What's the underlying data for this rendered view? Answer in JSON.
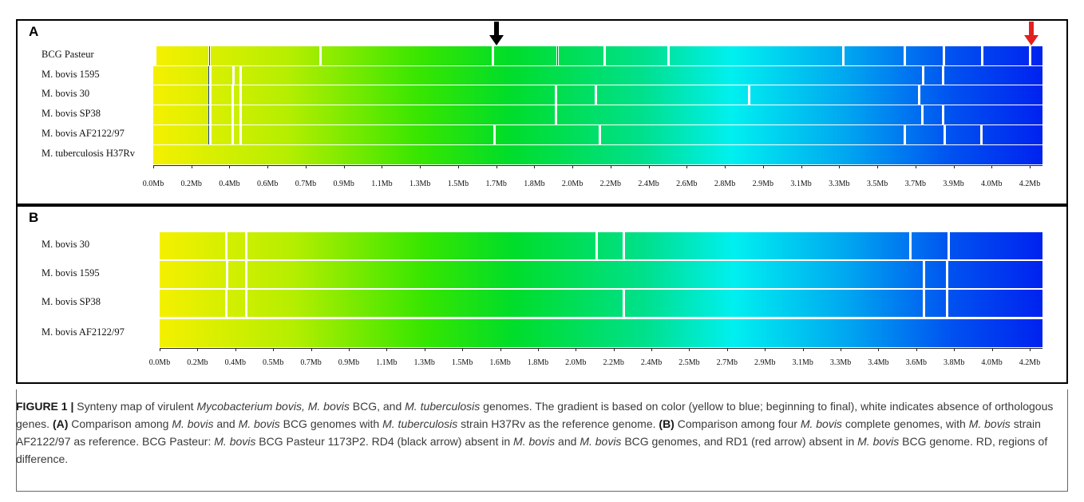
{
  "panelA": {
    "letter": "A",
    "tracks": [
      {
        "label": "BCG Pasteur",
        "top": 58,
        "height": 24,
        "start": 196,
        "gaps": [
          261,
          400,
          616,
          697,
          756,
          836,
          1055,
          1132,
          1181,
          1229,
          1289
        ],
        "darklines": [
          262,
          698
        ]
      },
      {
        "label": "M. bovis 1595",
        "top": 83,
        "height": 23,
        "start": 192,
        "gaps": [
          262,
          291,
          300,
          1155,
          1180
        ],
        "darklines": [
          261
        ]
      },
      {
        "label": "M. bovis 30",
        "top": 107,
        "height": 24,
        "start": 192,
        "gaps": [
          262,
          290,
          300,
          695,
          745,
          937,
          1150
        ],
        "darklines": [
          261
        ]
      },
      {
        "label": "M. bovis SP38",
        "top": 132,
        "height": 24,
        "start": 192,
        "gaps": [
          262,
          290,
          300,
          695,
          1154,
          1180
        ],
        "darklines": [
          261
        ]
      },
      {
        "label": "M. bovis AF2122/97",
        "top": 157,
        "height": 24,
        "start": 192,
        "gaps": [
          262,
          290,
          300,
          618,
          750,
          1132,
          1182,
          1228
        ],
        "darklines": [
          261
        ]
      },
      {
        "label": "M. tuberculosis H37Rv",
        "top": 182,
        "height": 24,
        "start": 192,
        "gaps": [],
        "darklines": []
      }
    ],
    "ticks": [
      "0.0Mb",
      "0.2Mb",
      "0.4Mb",
      "0.6Mb",
      "0.7Mb",
      "0.9Mb",
      "1.1Mb",
      "1.3Mb",
      "1.5Mb",
      "1.7Mb",
      "1.8Mb",
      "2.0Mb",
      "2.2Mb",
      "2.4Mb",
      "2.6Mb",
      "2.8Mb",
      "2.9Mb",
      "3.1Mb",
      "3.3Mb",
      "3.5Mb",
      "3.7Mb",
      "3.9Mb",
      "4.0Mb",
      "4.2Mb"
    ],
    "arrows": [
      {
        "color": "#000000"
      },
      {
        "color": "#e32020"
      }
    ]
  },
  "panelB": {
    "letter": "B",
    "tracks": [
      {
        "label": "M. bovis 30",
        "top": 291,
        "height": 34,
        "start": 200,
        "gaps": [
          282,
          307,
          746,
          780,
          1139,
          1187
        ],
        "darklines": []
      },
      {
        "label": "M. bovis 1595",
        "top": 327,
        "height": 34,
        "start": 200,
        "gaps": [
          283,
          307,
          1156,
          1185
        ],
        "darklines": []
      },
      {
        "label": "M. bovis SP38",
        "top": 363,
        "height": 34,
        "start": 200,
        "gaps": [
          282,
          307,
          780,
          1156,
          1185
        ],
        "darklines": []
      },
      {
        "label": "M. bovis AF2122/97",
        "top": 400,
        "height": 35,
        "start": 200,
        "gaps": [],
        "darklines": []
      }
    ],
    "ticks": [
      "0.0Mb",
      "0.2Mb",
      "0.4Mb",
      "0.5Mb",
      "0.7Mb",
      "0.9Mb",
      "1.1Mb",
      "1.3Mb",
      "1.5Mb",
      "1.6Mb",
      "1.8Mb",
      "2.0Mb",
      "2.2Mb",
      "2.4Mb",
      "2.5Mb",
      "2.7Mb",
      "2.9Mb",
      "3.1Mb",
      "3.3Mb",
      "3.4Mb",
      "3.6Mb",
      "3.8Mb",
      "4.0Mb",
      "4.2Mb"
    ]
  },
  "caption": {
    "figure_label": "FIGURE 1 |",
    "line1_a": " Synteny map of virulent ",
    "line1_i1": "Mycobacterium bovis, M. bovis",
    "line1_b": " BCG, and ",
    "line1_i2": "M. tuberculosis",
    "line1_c": " genomes. The gradient is based on color (yellow to blue; beginning to final), white indicates absence of orthologous genes. ",
    "A_label": "(A)",
    "A_a": " Comparison among ",
    "A_i1": "M. bovis",
    "A_b": " and ",
    "A_i2": "M. bovis",
    "A_c": " BCG genomes with ",
    "A_i3": "M. tuberculosis",
    "A_d": " strain H37Rv as the reference genome. ",
    "B_label": "(B)",
    "B_a": " Comparison among four ",
    "B_i1": "M. bovis",
    "B_b": " complete genomes, with ",
    "B_i2": "M. bovis",
    "B_c": " strain AF2122/97 as reference. BCG Pasteur: ",
    "B_i3": "M. bovis",
    "B_d": " BCG Pasteur 1173P2. RD4 (black arrow) absent in ",
    "B_i4": "M. bovis",
    "B_e": " and ",
    "B_i5": "M. bovis",
    "B_f": " BCG genomes, and RD1 (red arrow) absent in ",
    "B_i6": "M. bovis",
    "B_g": " BCG genome. RD, regions of difference."
  }
}
